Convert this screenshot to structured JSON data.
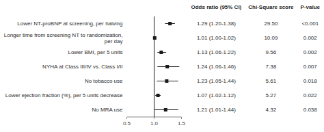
{
  "chart_data": {
    "type": "forest",
    "categories": [
      "Lower NT-proBNP at screening, per halving",
      "Longer time from screening NT to randomization, per day",
      "Lower BMI, per 5 units",
      "NYHA at Class III/IV vs. Class I/II",
      "No tobacco use",
      "Lower ejection fraction (%), per 5 units decrease",
      "No MRA use"
    ],
    "values": [
      1.29,
      1.01,
      1.13,
      1.24,
      1.23,
      1.07,
      1.21
    ],
    "lower": [
      1.2,
      1.005,
      1.06,
      1.06,
      1.05,
      1.02,
      1.01
    ],
    "upper": [
      1.38,
      1.015,
      1.22,
      1.46,
      1.44,
      1.12,
      1.44
    ],
    "columns": [
      {
        "header": "Odds ratio (95% CI)",
        "cells": [
          "1.29 (1.20-1.38)",
          "1.01 (1.00-1.02)",
          "1.13 (1.06-1.22)",
          "1.24 (1.06-1.46)",
          "1.23 (1.05-1.44)",
          "1.07 (1.02-1.12)",
          "1.21 (1.01-1.44)"
        ]
      },
      {
        "header": "Chi-Square score",
        "cells": [
          "29.50",
          "10.09",
          "9.56",
          "7.38",
          "5.61",
          "5.27",
          "4.32"
        ]
      },
      {
        "header": "P-value",
        "cells": [
          "<0.001",
          "0.002",
          "0.002",
          "0.007",
          "0.018",
          "0.022",
          "0.038"
        ]
      }
    ],
    "reference_line": 1.0,
    "xlim": [
      0.5,
      1.5
    ],
    "xticks": [
      0.5,
      {
        "value": 1.0,
        "label": "1.0"
      },
      1.5
    ],
    "color": "#1a1a1a",
    "grid": false
  }
}
